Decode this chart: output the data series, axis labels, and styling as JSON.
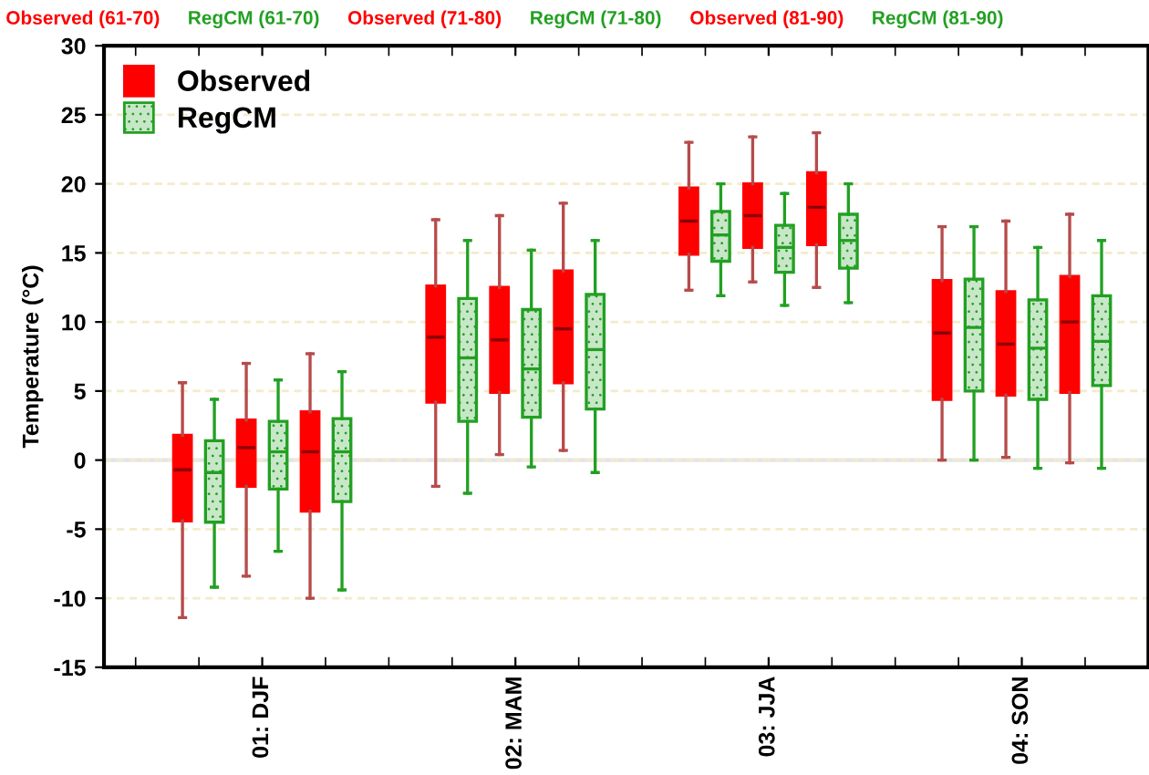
{
  "chart_data": {
    "type": "box",
    "ylabel": "Temperature (°C)",
    "categories": [
      "01: DJF",
      "02: MAM",
      "03: JJA",
      "04: SON"
    ],
    "ylim": [
      -15,
      30
    ],
    "yticks": [
      -15,
      -10,
      -5,
      0,
      5,
      10,
      15,
      20,
      25,
      30
    ],
    "grid": "y",
    "legend": "top left",
    "annotations": [
      "Observed (61-70)",
      "RegCM (61-70)",
      "Observed (71-80)",
      "RegCM (71-80)",
      "Observed (81-90)",
      "RegCM (81-90)"
    ],
    "series": [
      {
        "name": "Observed",
        "color": "#ff0000",
        "boxes": [
          {
            "low": -11.4,
            "q1": -4.4,
            "median": -0.7,
            "q3": 1.8,
            "high": 5.6
          },
          {
            "low": -1.9,
            "q1": 4.2,
            "median": 8.9,
            "q3": 12.6,
            "high": 17.4
          },
          {
            "low": 12.3,
            "q1": 14.9,
            "median": 17.3,
            "q3": 19.7,
            "high": 23.0
          },
          {
            "low": 0,
            "q1": 4.4,
            "median": 9.2,
            "q3": 13.0,
            "high": 16.9
          }
        ]
      },
      {
        "name": "RegCM",
        "color": "#22a022",
        "boxes": [
          {
            "low": -9.2,
            "q1": -4.5,
            "median": -0.9,
            "q3": 1.4,
            "high": 4.4
          },
          {
            "low": -2.4,
            "q1": 2.8,
            "median": 7.4,
            "q3": 11.7,
            "high": 15.9
          },
          {
            "low": 11.9,
            "q1": 14.4,
            "median": 16.3,
            "q3": 18.0,
            "high": 20.0
          },
          {
            "low": 0,
            "q1": 5.0,
            "median": 9.6,
            "q3": 13.1,
            "high": 16.9
          }
        ]
      },
      {
        "color": "#ff0000",
        "boxes": [
          {
            "low": -8.4,
            "q1": -1.9,
            "median": 0.9,
            "q3": 2.9,
            "high": 7.0
          },
          {
            "low": 0.4,
            "q1": 4.9,
            "median": 8.7,
            "q3": 12.5,
            "high": 17.7
          },
          {
            "low": 12.9,
            "q1": 15.4,
            "median": 17.7,
            "q3": 20.0,
            "high": 23.4
          },
          {
            "low": 0.2,
            "q1": 4.7,
            "median": 8.4,
            "q3": 12.2,
            "high": 17.3
          }
        ]
      },
      {
        "color": "#22a022",
        "boxes": [
          {
            "low": -6.6,
            "q1": -2.1,
            "median": 0.6,
            "q3": 2.8,
            "high": 5.8
          },
          {
            "low": -0.5,
            "q1": 3.1,
            "median": 6.6,
            "q3": 10.9,
            "high": 15.2
          },
          {
            "low": 11.2,
            "q1": 13.6,
            "median": 15.4,
            "q3": 17.0,
            "high": 19.3
          },
          {
            "low": -0.6,
            "q1": 4.4,
            "median": 8.1,
            "q3": 11.6,
            "high": 15.4
          }
        ]
      },
      {
        "color": "#ff0000",
        "boxes": [
          {
            "low": -10.0,
            "q1": -3.7,
            "median": 0.6,
            "q3": 3.5,
            "high": 7.7
          },
          {
            "low": 0.7,
            "q1": 5.6,
            "median": 9.5,
            "q3": 13.7,
            "high": 18.6
          },
          {
            "low": 12.5,
            "q1": 15.6,
            "median": 18.3,
            "q3": 20.8,
            "high": 23.7
          },
          {
            "low": -0.2,
            "q1": 4.9,
            "median": 10.0,
            "q3": 13.3,
            "high": 17.8
          }
        ]
      },
      {
        "color": "#22a022",
        "boxes": [
          {
            "low": -9.4,
            "q1": -3.0,
            "median": 0.6,
            "q3": 3.0,
            "high": 6.4
          },
          {
            "low": -0.9,
            "q1": 3.7,
            "median": 8.0,
            "q3": 12.0,
            "high": 15.9
          },
          {
            "low": 11.4,
            "q1": 13.9,
            "median": 15.9,
            "q3": 17.8,
            "high": 20.0
          },
          {
            "low": -0.6,
            "q1": 5.4,
            "median": 8.6,
            "q3": 11.9,
            "high": 15.9
          }
        ]
      }
    ]
  }
}
